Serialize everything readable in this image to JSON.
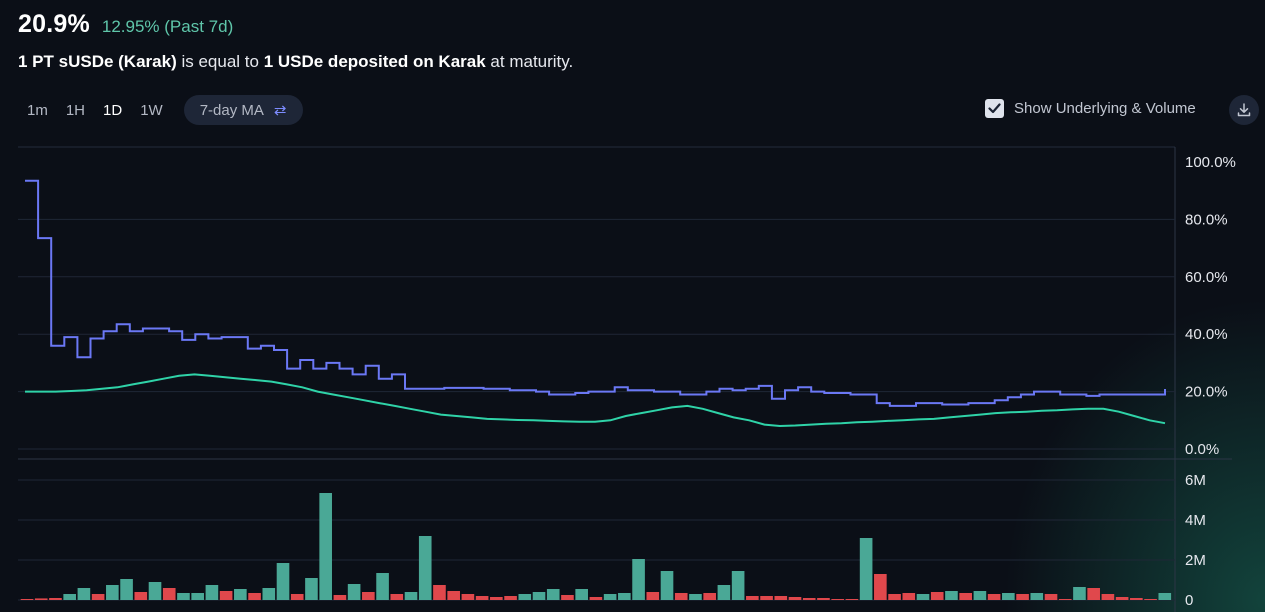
{
  "header": {
    "value": "20.9%",
    "change": "12.95% (Past 7d)"
  },
  "description": {
    "part1": "1 PT sUSDe (Karak)",
    "part2": " is equal to ",
    "part3": "1 USDe deposited on Karak",
    "part4": " at maturity."
  },
  "controls": {
    "timeframes": [
      "1m",
      "1H",
      "1D",
      "1W"
    ],
    "active_timeframe": "1D",
    "ma_label": "7-day MA",
    "ma_icon": "swap-arrows-icon",
    "toggle_label": "Show Underlying & Volume",
    "toggle_checked": true,
    "download_icon": "download-icon"
  },
  "colors": {
    "implied": "#6b78f5",
    "underlying": "#2fd3a8",
    "volume_up": "#4aa896",
    "volume_down": "#e0484c"
  },
  "chart_data": [
    {
      "type": "line",
      "ylim": [
        0,
        100
      ],
      "yticks": [
        "100.0%",
        "80.0%",
        "60.0%",
        "40.0%",
        "20.0%",
        "0.0%"
      ],
      "grid": true,
      "series": [
        {
          "values": [
            93.5,
            73.5,
            36,
            39,
            32,
            38.5,
            41,
            43.5,
            41,
            42,
            42,
            41,
            38,
            40,
            38.5,
            39,
            39,
            35,
            36,
            34.5,
            28,
            31,
            28,
            30,
            28,
            26,
            29,
            24.5,
            26,
            21,
            21,
            21,
            21.3,
            21.3,
            21.3,
            21,
            21,
            20.5,
            20.5,
            20,
            19,
            19,
            19.5,
            20,
            20,
            21.5,
            20.5,
            20.5,
            20,
            20,
            19,
            19,
            20,
            21,
            20.5,
            21,
            22,
            17.5,
            20.5,
            21.5,
            20,
            19.5,
            19.5,
            19,
            19,
            16,
            15,
            15,
            16,
            16,
            15.5,
            15.5,
            16,
            16,
            17,
            18,
            19,
            20,
            20,
            19,
            19,
            18.5,
            19,
            19,
            19,
            19,
            19,
            20.9
          ]
        },
        {
          "values": [
            20,
            20,
            20,
            20.2,
            20.5,
            21,
            21.5,
            22.5,
            23.5,
            24.5,
            25.5,
            26,
            25.5,
            25,
            24.5,
            24,
            23.5,
            22.5,
            21.5,
            20,
            19,
            18,
            17,
            16,
            15,
            14,
            13,
            12,
            11.5,
            11,
            10.5,
            10.3,
            10.1,
            10,
            9.8,
            9.6,
            9.5,
            9.5,
            10,
            11.5,
            12.5,
            13.5,
            14.5,
            15,
            14,
            12.5,
            11,
            10,
            8.5,
            8,
            8.2,
            8.5,
            8.8,
            9,
            9.3,
            9.5,
            9.8,
            10,
            10.3,
            10.5,
            11,
            11.5,
            12,
            12.5,
            12.8,
            13,
            13.3,
            13.5,
            13.8,
            14,
            14,
            13,
            11.5,
            10,
            9
          ]
        }
      ]
    },
    {
      "type": "bar",
      "ylim": [
        0,
        6
      ],
      "yticks": [
        "6M",
        "4M",
        "2M",
        "0"
      ],
      "unit": "M",
      "grid": true,
      "series": [
        {
          "values": [
            0.05,
            0.08,
            0.1,
            0.3,
            0.6,
            0.3,
            0.75,
            1.05,
            0.4,
            0.9,
            0.6,
            0.35,
            0.35,
            0.75,
            0.45,
            0.55,
            0.35,
            0.6,
            1.85,
            0.3,
            1.1,
            5.35,
            0.25,
            0.8,
            0.4,
            1.35,
            0.3,
            0.4,
            3.2,
            0.75,
            0.45,
            0.3,
            0.2,
            0.15,
            0.2,
            0.3,
            0.4,
            0.55,
            0.25,
            0.55,
            0.15,
            0.3,
            0.35,
            2.05,
            0.4,
            1.45,
            0.35,
            0.3,
            0.35,
            0.75,
            1.45,
            0.2,
            0.2,
            0.2,
            0.15,
            0.1,
            0.1,
            0.05,
            0.05,
            3.1,
            1.3,
            0.3,
            0.35,
            0.3,
            0.4,
            0.45,
            0.35,
            0.45,
            0.3,
            0.35,
            0.3,
            0.35,
            0.3,
            0.05,
            0.65,
            0.6,
            0.3,
            0.15,
            0.1,
            0.05,
            0.35
          ],
          "up": [
            0,
            0,
            0,
            1,
            1,
            0,
            1,
            1,
            0,
            1,
            0,
            1,
            1,
            1,
            0,
            1,
            0,
            1,
            1,
            0,
            1,
            1,
            0,
            1,
            0,
            1,
            0,
            1,
            1,
            0,
            0,
            0,
            0,
            0,
            0,
            1,
            1,
            1,
            0,
            1,
            0,
            1,
            1,
            1,
            0,
            1,
            0,
            1,
            0,
            1,
            1,
            0,
            0,
            0,
            0,
            0,
            0,
            0,
            0,
            1,
            0,
            0,
            0,
            1,
            0,
            1,
            0,
            1,
            0,
            1,
            0,
            1,
            0,
            0,
            1,
            0,
            0,
            0,
            0,
            0,
            1
          ]
        }
      ]
    }
  ]
}
